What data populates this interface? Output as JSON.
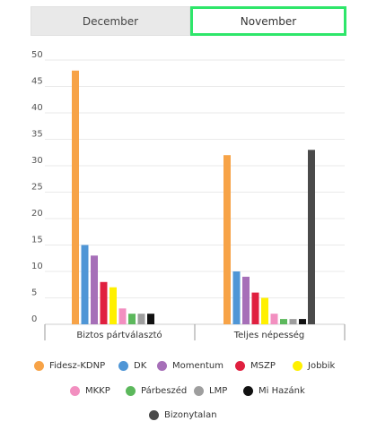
{
  "tabs": [
    {
      "label": "December",
      "active": false
    },
    {
      "label": "November",
      "active": true
    }
  ],
  "highlight_color": "#2ee66a",
  "chart_data": {
    "type": "bar",
    "categories": [
      "Biztos pártválasztó",
      "Teljes népesség"
    ],
    "ylim": [
      0,
      50
    ],
    "yticks": [
      0,
      5,
      10,
      15,
      20,
      25,
      30,
      35,
      40,
      45,
      50
    ],
    "grid": true,
    "legend_position": "bottom",
    "series": [
      {
        "name": "Fidesz-KDNP",
        "color": "#f7a347",
        "values": [
          48,
          32
        ]
      },
      {
        "name": "DK",
        "color": "#4f96d6",
        "values": [
          15,
          10
        ]
      },
      {
        "name": "Momentum",
        "color": "#a66fb8",
        "values": [
          13,
          9
        ]
      },
      {
        "name": "MSZP",
        "color": "#e0203f",
        "values": [
          8,
          6
        ]
      },
      {
        "name": "Jobbik",
        "color": "#fff000",
        "values": [
          7,
          5
        ]
      },
      {
        "name": "MKKP",
        "color": "#f28fc0",
        "values": [
          3,
          2
        ]
      },
      {
        "name": "Párbeszéd",
        "color": "#5cb85c",
        "values": [
          2,
          1
        ]
      },
      {
        "name": "LMP",
        "color": "#9e9e9e",
        "values": [
          2,
          1
        ]
      },
      {
        "name": "Mi Hazánk",
        "color": "#111111",
        "values": [
          2,
          1
        ]
      },
      {
        "name": "Bizonytalan",
        "color": "#4a4a4a",
        "values": [
          null,
          33
        ]
      }
    ]
  }
}
